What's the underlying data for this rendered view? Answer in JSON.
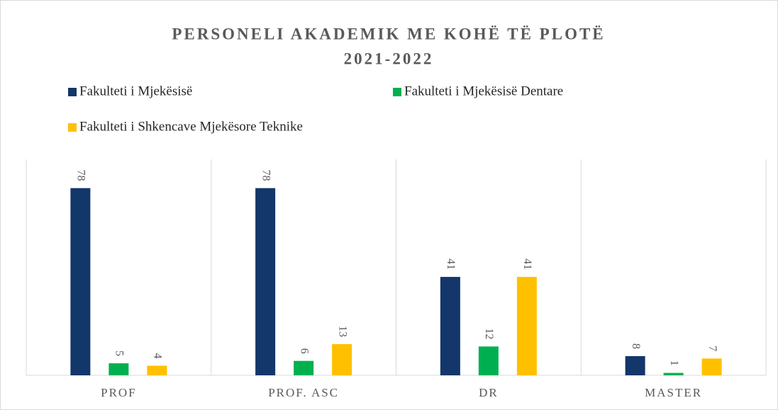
{
  "chart_data": {
    "type": "bar",
    "title": "PERSONELI AKADEMIK ME KOHË TË PLOTË",
    "subtitle": "2021-2022",
    "categories": [
      "PROF",
      "PROF. ASC",
      "DR",
      "MASTER"
    ],
    "series": [
      {
        "name": "Fakulteti i Mjekësisë",
        "color": "#13366b",
        "values": [
          78,
          78,
          41,
          8
        ]
      },
      {
        "name": "Fakulteti i Mjekësisë Dentare",
        "color": "#00b050",
        "values": [
          5,
          6,
          12,
          1
        ]
      },
      {
        "name": "Fakulteti i Shkencave Mjekësore Teknike",
        "color": "#ffc000",
        "values": [
          4,
          13,
          41,
          7
        ]
      }
    ],
    "ylim": [
      0,
      90
    ],
    "legend": "top"
  }
}
